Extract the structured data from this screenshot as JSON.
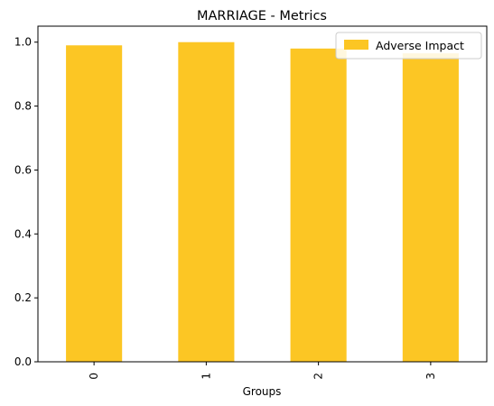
{
  "chart_data": {
    "type": "bar",
    "title": "MARRIAGE - Metrics",
    "xlabel": "Groups",
    "ylabel": "",
    "categories": [
      "0",
      "1",
      "2",
      "3"
    ],
    "series": [
      {
        "name": "Adverse Impact",
        "values": [
          0.99,
          1.0,
          0.98,
          0.965
        ],
        "color": "#fcc624"
      }
    ],
    "ylim": [
      0,
      1.05
    ],
    "yticks": [
      "0.0",
      "0.2",
      "0.4",
      "0.6",
      "0.8",
      "1.0"
    ],
    "grid": false,
    "legend": "top-right"
  }
}
